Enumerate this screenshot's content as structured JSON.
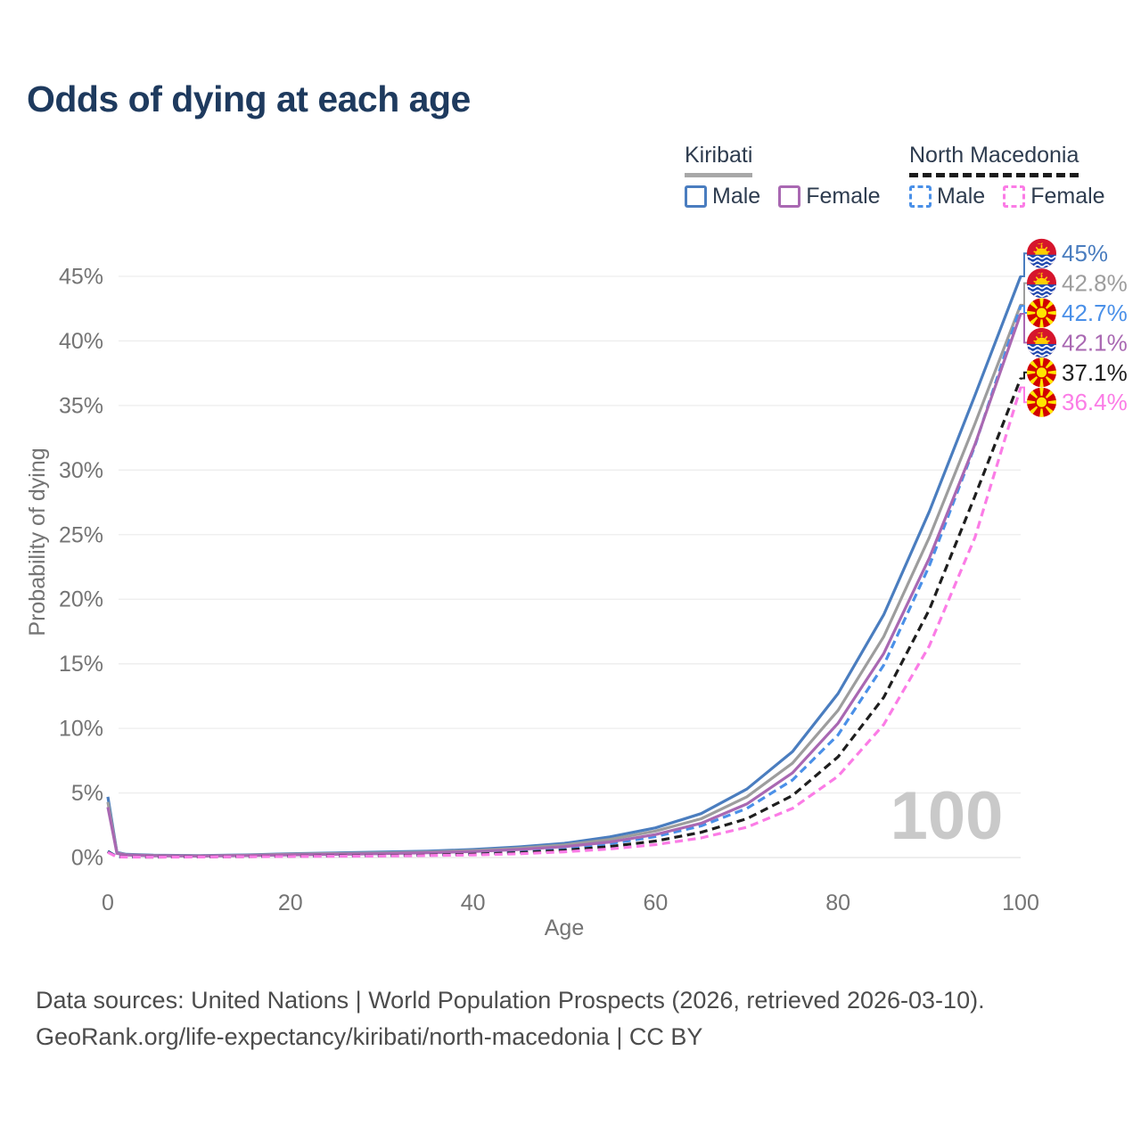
{
  "title": "Odds of dying at each age",
  "legend": {
    "groups": [
      {
        "name": "Kiribati",
        "line_style": "solid",
        "underline_color": "#a8a8a8",
        "items": [
          {
            "label": "Male",
            "color": "#4a7dbf"
          },
          {
            "label": "Female",
            "color": "#a968b2"
          }
        ]
      },
      {
        "name": "North Macedonia",
        "line_style": "dashed",
        "underline_color": "#1c1c1c",
        "items": [
          {
            "label": "Male",
            "color": "#4a90e8"
          },
          {
            "label": "Female",
            "color": "#fb7ce6"
          }
        ]
      }
    ]
  },
  "axes": {
    "x": {
      "label": "Age",
      "tick_values": [
        0,
        20,
        40,
        60,
        80,
        100
      ],
      "min": 0,
      "max": 100
    },
    "y": {
      "label": "Probability of dying",
      "tick_values": [
        0,
        5,
        10,
        15,
        20,
        25,
        30,
        35,
        40,
        45
      ],
      "tick_suffix": "%",
      "min": 0,
      "max": 45
    }
  },
  "watermark": "100",
  "chart_data": {
    "type": "line",
    "title": "Odds of dying at each age",
    "xlabel": "Age",
    "ylabel": "Probability of dying",
    "xlim": [
      0,
      100
    ],
    "ylim": [
      0,
      45
    ],
    "grid": "horizontal",
    "legend_position": "top-right",
    "x": [
      0,
      1,
      2,
      5,
      10,
      15,
      20,
      25,
      30,
      35,
      40,
      45,
      50,
      55,
      60,
      65,
      70,
      75,
      80,
      85,
      90,
      95,
      100
    ],
    "series": [
      {
        "name": "Kiribati Male",
        "country": "Kiribati",
        "sex": "Male",
        "color": "#4a7dbf",
        "dashed": false,
        "flag": "kiribati",
        "end_label": "45%",
        "values": [
          4.7,
          0.4,
          0.25,
          0.18,
          0.15,
          0.2,
          0.3,
          0.36,
          0.42,
          0.5,
          0.62,
          0.82,
          1.1,
          1.6,
          2.3,
          3.4,
          5.3,
          8.2,
          12.7,
          18.8,
          26.8,
          35.8,
          45.0
        ]
      },
      {
        "name": "Kiribati Both sexes",
        "country": "Kiribati",
        "sex": "Both",
        "color": "#9d9d9d",
        "dashed": false,
        "flag": "kiribati",
        "end_label": "42.8%",
        "values": [
          4.3,
          0.36,
          0.22,
          0.16,
          0.13,
          0.17,
          0.26,
          0.31,
          0.36,
          0.43,
          0.54,
          0.72,
          0.97,
          1.4,
          2.05,
          3.0,
          4.7,
          7.3,
          11.4,
          17.1,
          24.8,
          33.6,
          42.8
        ]
      },
      {
        "name": "North Macedonia Male",
        "country": "North Macedonia",
        "sex": "Male",
        "color": "#4a90e8",
        "dashed": true,
        "flag": "macedonia",
        "end_label": "42.7%",
        "values": [
          0.5,
          0.06,
          0.05,
          0.04,
          0.05,
          0.08,
          0.12,
          0.14,
          0.17,
          0.22,
          0.31,
          0.46,
          0.7,
          1.07,
          1.62,
          2.45,
          3.8,
          6.0,
          9.5,
          14.9,
          22.6,
          31.9,
          42.7
        ]
      },
      {
        "name": "Kiribati Female",
        "country": "Kiribati",
        "sex": "Female",
        "color": "#a968b2",
        "dashed": false,
        "flag": "kiribati",
        "end_label": "42.1%",
        "values": [
          3.9,
          0.32,
          0.2,
          0.14,
          0.12,
          0.15,
          0.21,
          0.25,
          0.3,
          0.37,
          0.46,
          0.62,
          0.84,
          1.2,
          1.78,
          2.65,
          4.15,
          6.55,
          10.4,
          15.8,
          23.2,
          32.0,
          42.1
        ]
      },
      {
        "name": "North Macedonia Both sexes",
        "country": "North Macedonia",
        "sex": "Both",
        "color": "#1e1e1e",
        "dashed": true,
        "flag": "macedonia",
        "end_label": "37.1%",
        "values": [
          0.45,
          0.05,
          0.04,
          0.035,
          0.045,
          0.07,
          0.1,
          0.12,
          0.14,
          0.18,
          0.25,
          0.37,
          0.56,
          0.85,
          1.28,
          1.95,
          3.0,
          4.8,
          7.8,
          12.4,
          19.2,
          28.0,
          37.1
        ]
      },
      {
        "name": "North Macedonia Female",
        "country": "North Macedonia",
        "sex": "Female",
        "color": "#fb7ce6",
        "dashed": true,
        "flag": "macedonia",
        "end_label": "36.4%",
        "values": [
          0.4,
          0.045,
          0.035,
          0.03,
          0.04,
          0.06,
          0.08,
          0.1,
          0.12,
          0.15,
          0.2,
          0.29,
          0.44,
          0.66,
          1.0,
          1.52,
          2.35,
          3.8,
          6.3,
          10.3,
          16.4,
          24.8,
          36.4
        ]
      }
    ]
  },
  "footer": {
    "line1": "Data sources: United Nations | World Population Prospects (2026, retrieved 2026-03-10).",
    "line2": "GeoRank.org/life-expectancy/kiribati/north-macedonia | CC BY"
  }
}
